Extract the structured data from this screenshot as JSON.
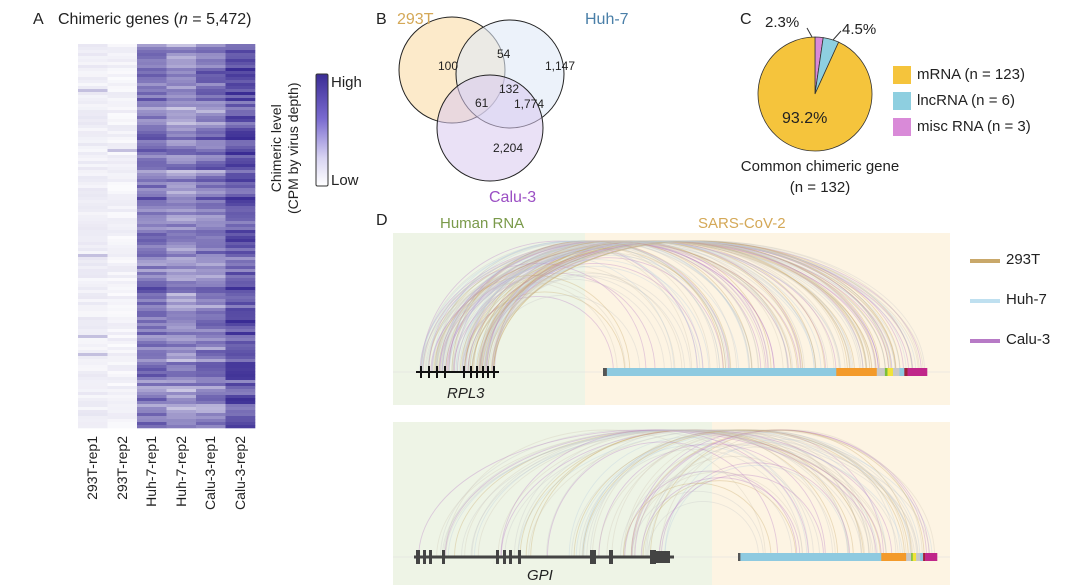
{
  "panels": {
    "a": "A",
    "b": "B",
    "c": "C",
    "d": "D"
  },
  "chart_data": [
    {
      "type": "heatmap",
      "title_prefix": "Chimeric genes (",
      "title_n": "n",
      "title_suffix": " = 5,472)",
      "columns": [
        "293T-rep1",
        "293T-rep2",
        "Huh-7-rep1",
        "Huh-7-rep2",
        "Calu-3-rep1",
        "Calu-3-rep2"
      ],
      "relative_mean_level": [
        0.08,
        0.06,
        0.62,
        0.5,
        0.6,
        0.78
      ],
      "colorbar": {
        "title_line1": "Chimeric level",
        "title_line2": "(CPM by virus depth)",
        "high": "High",
        "low": "Low",
        "low_color": "#ffffff",
        "high_color": "#3a2c94"
      }
    },
    {
      "type": "venn",
      "sets": [
        {
          "name": "293T",
          "color": "#d4a857",
          "fill": "#fbe3b8"
        },
        {
          "name": "Huh-7",
          "color": "#4a7fa8",
          "fill": "#dfeaf6"
        },
        {
          "name": "Calu-3",
          "color": "#9b4fc4",
          "fill": "#e6daf3"
        }
      ],
      "regions": {
        "293T_only": "100",
        "Huh-7_only": "1,147",
        "Calu-3_only": "2,204",
        "293T_Huh-7": "54",
        "293T_Calu-3": "61",
        "Huh-7_Calu-3": "1,774",
        "all": "132"
      }
    },
    {
      "type": "pie",
      "title": "Common chimeric gene",
      "subtitle_n": "(n = 132)",
      "slices": [
        {
          "label": "misc RNA (n = 3)",
          "value": 2.3,
          "pct": "2.3%",
          "color": "#d98ad8"
        },
        {
          "label": "lncRNA (n = 6)",
          "value": 4.5,
          "pct": "4.5%",
          "color": "#8ecfe0"
        },
        {
          "label": "mRNA (n = 123)",
          "value": 93.2,
          "pct": "93.2%",
          "color": "#f5c43c"
        }
      ]
    },
    {
      "type": "arc",
      "region_labels": {
        "human": "Human RNA",
        "virus": "SARS-CoV-2"
      },
      "region_colors": {
        "human": "#7a9a4a",
        "virus": "#d4a857"
      },
      "genes": [
        "RPL3",
        "GPI"
      ],
      "legend": [
        {
          "name": "293T",
          "color": "#c9a86a"
        },
        {
          "name": "Huh-7",
          "color": "#bfe0f0"
        },
        {
          "name": "Calu-3",
          "color": "#b77ac6"
        }
      ]
    }
  ]
}
